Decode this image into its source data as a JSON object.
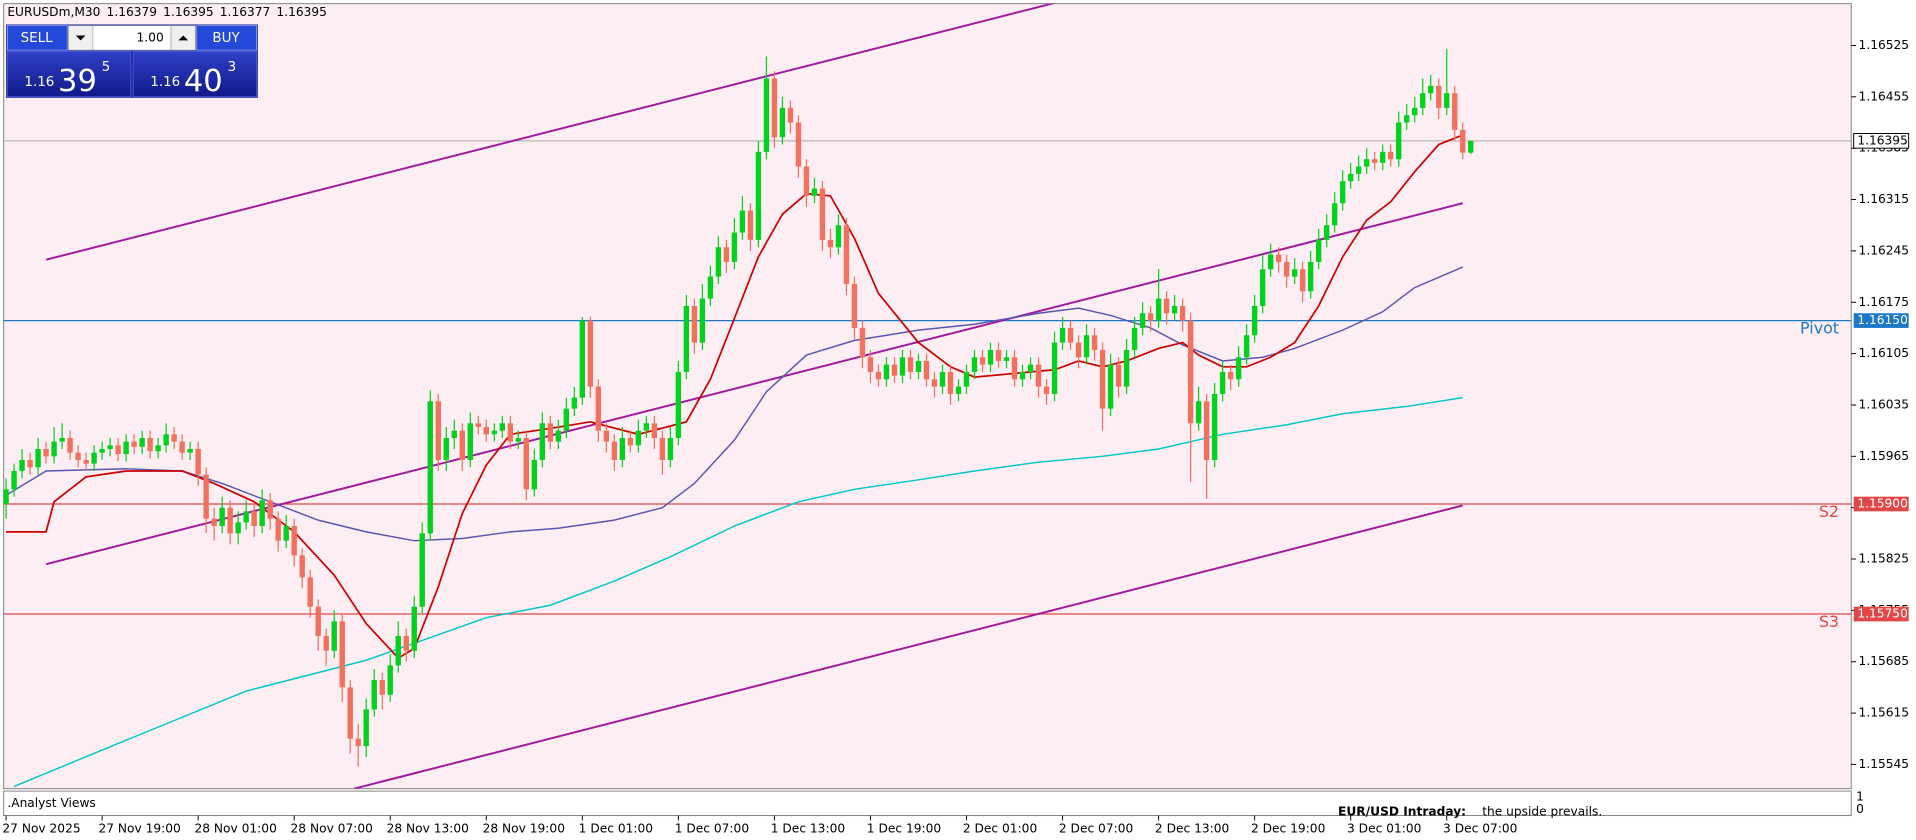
{
  "chart_data": {
    "type": "candlestick",
    "symbol": "EURUSDm,M30",
    "header_ohlc": [
      1.16379,
      1.16395,
      1.16377,
      1.16395
    ],
    "up_color": "#00d21e",
    "down_color": "#f2715e",
    "ylim": [
      1.15512,
      1.16582
    ],
    "yticks": [
      1.16525,
      1.16455,
      1.16385,
      1.16315,
      1.16245,
      1.16175,
      1.16105,
      1.16035,
      1.15965,
      1.15895,
      1.15825,
      1.15755,
      1.15685,
      1.15615,
      1.15545
    ],
    "xlim": [
      -0.3,
      230.54
    ],
    "xticks": [
      {
        "value": 0,
        "label": "27 Nov 2025"
      },
      {
        "value": 12,
        "label": "27 Nov 19:00"
      },
      {
        "value": 24,
        "label": "28 Nov 01:00"
      },
      {
        "value": 36,
        "label": "28 Nov 07:00"
      },
      {
        "value": 48,
        "label": "28 Nov 13:00"
      },
      {
        "value": 60,
        "label": "28 Nov 19:00"
      },
      {
        "value": 72,
        "label": "1 Dec 01:00"
      },
      {
        "value": 84,
        "label": "1 Dec 07:00"
      },
      {
        "value": 96,
        "label": "1 Dec 13:00"
      },
      {
        "value": 108,
        "label": "1 Dec 19:00"
      },
      {
        "value": 120,
        "label": "2 Dec 01:00"
      },
      {
        "value": 132,
        "label": "2 Dec 07:00"
      },
      {
        "value": 144,
        "label": "2 Dec 13:00"
      },
      {
        "value": 156,
        "label": "2 Dec 19:00"
      },
      {
        "value": 168,
        "label": "3 Dec 01:00"
      },
      {
        "value": 180,
        "label": "3 Dec 07:00"
      }
    ],
    "open": [
      1.159,
      1.1592,
      1.15945,
      1.1596,
      1.1595,
      1.15975,
      1.15965,
      1.15985,
      1.1599,
      1.1597,
      1.1596,
      1.15955,
      1.1597,
      1.15975,
      1.1598,
      1.15968,
      1.15985,
      1.15978,
      1.1599,
      1.15972,
      1.1598,
      1.15995,
      1.15985,
      1.1597,
      1.15975,
      1.1594,
      1.1588,
      1.1587,
      1.15895,
      1.1586,
      1.15875,
      1.1589,
      1.1587,
      1.15905,
      1.1588,
      1.1585,
      1.1587,
      1.1583,
      1.158,
      1.1576,
      1.1572,
      1.157,
      1.1574,
      1.1565,
      1.1558,
      1.1557,
      1.1562,
      1.1566,
      1.1564,
      1.1568,
      1.1572,
      1.157,
      1.1576,
      1.1586,
      1.1604,
      1.1596,
      1.1599,
      1.16,
      1.1596,
      1.1601,
      1.16005,
      1.15995,
      1.16,
      1.1601,
      1.15985,
      1.1599,
      1.1592,
      1.1596,
      1.1601,
      1.15985,
      1.16,
      1.1603,
      1.16045,
      1.1615,
      1.1606,
      1.16,
      1.15985,
      1.1596,
      1.1599,
      1.1598,
      1.16,
      1.1601,
      1.1599,
      1.1596,
      1.1599,
      1.1608,
      1.1617,
      1.1612,
      1.1618,
      1.1621,
      1.1625,
      1.1623,
      1.1627,
      1.163,
      1.1626,
      1.1638,
      1.1648,
      1.164,
      1.1644,
      1.1642,
      1.1636,
      1.1632,
      1.1633,
      1.1626,
      1.1625,
      1.1628,
      1.162,
      1.1614,
      1.161,
      1.1608,
      1.1607,
      1.1609,
      1.16075,
      1.161,
      1.1608,
      1.16095,
      1.1607,
      1.1606,
      1.1608,
      1.1605,
      1.1606,
      1.1608,
      1.161,
      1.1609,
      1.1611,
      1.16095,
      1.161,
      1.1607,
      1.1608,
      1.1609,
      1.1606,
      1.1605,
      1.1612,
      1.1614,
      1.1612,
      1.161,
      1.1613,
      1.1611,
      1.1603,
      1.1609,
      1.1606,
      1.1611,
      1.1614,
      1.1616,
      1.1615,
      1.1618,
      1.1616,
      1.1617,
      1.1615,
      1.1601,
      1.1604,
      1.1596,
      1.1605,
      1.1608,
      1.1607,
      1.161,
      1.1613,
      1.1617,
      1.1622,
      1.1624,
      1.1623,
      1.1621,
      1.1622,
      1.1619,
      1.1623,
      1.1626,
      1.1628,
      1.1631,
      1.1634,
      1.1635,
      1.1636,
      1.1637,
      1.16365,
      1.1638,
      1.1637,
      1.1642,
      1.1643,
      1.1644,
      1.1646,
      1.1647,
      1.1644,
      1.1646,
      1.1641,
      1.16379
    ],
    "high": [
      1.15935,
      1.15955,
      1.15975,
      1.1597,
      1.1599,
      1.15985,
      1.16005,
      1.1601,
      1.16,
      1.1598,
      1.1597,
      1.1598,
      1.15985,
      1.1599,
      1.1599,
      1.15995,
      1.15995,
      1.16,
      1.16,
      1.1599,
      1.1601,
      1.16005,
      1.15995,
      1.15985,
      1.15985,
      1.1595,
      1.15895,
      1.1591,
      1.15905,
      1.1589,
      1.15905,
      1.159,
      1.1592,
      1.15915,
      1.1589,
      1.15885,
      1.1588,
      1.1584,
      1.1581,
      1.1577,
      1.1573,
      1.15755,
      1.1575,
      1.1566,
      1.156,
      1.15635,
      1.15675,
      1.1567,
      1.15695,
      1.1574,
      1.1573,
      1.15775,
      1.15875,
      1.16055,
      1.1605,
      1.16005,
      1.16015,
      1.1601,
      1.16025,
      1.1602,
      1.16015,
      1.1601,
      1.1602,
      1.1602,
      1.16,
      1.16,
      1.15975,
      1.16025,
      1.1602,
      1.16015,
      1.16045,
      1.1606,
      1.16155,
      1.16155,
      1.1607,
      1.1601,
      1.15995,
      1.16005,
      1.16,
      1.16015,
      1.1602,
      1.1602,
      1.16,
      1.16005,
      1.16095,
      1.16185,
      1.1618,
      1.162,
      1.16225,
      1.16265,
      1.1626,
      1.1629,
      1.1632,
      1.1631,
      1.16395,
      1.1651,
      1.1649,
      1.16455,
      1.1645,
      1.1643,
      1.1637,
      1.16345,
      1.1634,
      1.16275,
      1.16295,
      1.1629,
      1.1621,
      1.1615,
      1.1611,
      1.1609,
      1.161,
      1.161,
      1.1611,
      1.1611,
      1.16105,
      1.16105,
      1.1608,
      1.1609,
      1.1609,
      1.1607,
      1.1609,
      1.1611,
      1.1611,
      1.1612,
      1.1612,
      1.1611,
      1.1611,
      1.1609,
      1.161,
      1.161,
      1.1607,
      1.16135,
      1.16155,
      1.1615,
      1.1613,
      1.16145,
      1.1614,
      1.1612,
      1.16105,
      1.161,
      1.16125,
      1.16155,
      1.16175,
      1.1617,
      1.1622,
      1.1619,
      1.16185,
      1.1618,
      1.1616,
      1.1606,
      1.1605,
      1.16065,
      1.16095,
      1.1609,
      1.16115,
      1.16145,
      1.16185,
      1.1624,
      1.16255,
      1.1625,
      1.1624,
      1.16235,
      1.1623,
      1.16245,
      1.16275,
      1.16295,
      1.16325,
      1.16355,
      1.16365,
      1.16375,
      1.16385,
      1.1638,
      1.1639,
      1.1639,
      1.16435,
      1.16445,
      1.16455,
      1.1648,
      1.16485,
      1.1648,
      1.1652,
      1.1647,
      1.1642,
      1.16395
    ],
    "low": [
      1.1588,
      1.1591,
      1.15935,
      1.1594,
      1.1594,
      1.15955,
      1.15955,
      1.15975,
      1.1596,
      1.1595,
      1.15945,
      1.15945,
      1.1596,
      1.15965,
      1.15958,
      1.15958,
      1.15968,
      1.15968,
      1.15962,
      1.15962,
      1.1597,
      1.15975,
      1.1596,
      1.1596,
      1.15925,
      1.1586,
      1.1585,
      1.1586,
      1.15845,
      1.15845,
      1.15865,
      1.15855,
      1.1586,
      1.15865,
      1.15835,
      1.1584,
      1.15815,
      1.15785,
      1.15745,
      1.157,
      1.1568,
      1.1569,
      1.1563,
      1.1556,
      1.15542,
      1.15555,
      1.1561,
      1.1562,
      1.1563,
      1.1567,
      1.15685,
      1.1569,
      1.1575,
      1.1585,
      1.15945,
      1.15945,
      1.15975,
      1.15945,
      1.1595,
      1.15995,
      1.15985,
      1.15985,
      1.1599,
      1.15975,
      1.15975,
      1.15905,
      1.1591,
      1.1595,
      1.15975,
      1.15975,
      1.1599,
      1.1602,
      1.16035,
      1.16045,
      1.15985,
      1.1597,
      1.15945,
      1.1595,
      1.1597,
      1.1597,
      1.1599,
      1.15975,
      1.1594,
      1.1595,
      1.1598,
      1.1607,
      1.16105,
      1.1611,
      1.1617,
      1.162,
      1.16215,
      1.1622,
      1.1626,
      1.16245,
      1.1625,
      1.1637,
      1.16385,
      1.1639,
      1.16405,
      1.16345,
      1.16305,
      1.1631,
      1.16245,
      1.16235,
      1.1624,
      1.16185,
      1.16125,
      1.16085,
      1.16065,
      1.1606,
      1.1606,
      1.16065,
      1.16065,
      1.1607,
      1.1607,
      1.1606,
      1.16045,
      1.1605,
      1.16035,
      1.1604,
      1.1605,
      1.1607,
      1.1608,
      1.1608,
      1.16085,
      1.16085,
      1.1606,
      1.1606,
      1.1607,
      1.16045,
      1.16035,
      1.1604,
      1.1611,
      1.1611,
      1.16085,
      1.1609,
      1.16095,
      1.16,
      1.1602,
      1.16045,
      1.1605,
      1.161,
      1.1613,
      1.16135,
      1.1614,
      1.16145,
      1.1615,
      1.16135,
      1.1593,
      1.16,
      1.15907,
      1.1595,
      1.1604,
      1.16055,
      1.1606,
      1.1609,
      1.1612,
      1.1616,
      1.1621,
      1.16215,
      1.16195,
      1.162,
      1.16175,
      1.1618,
      1.1622,
      1.1625,
      1.1627,
      1.163,
      1.1633,
      1.1634,
      1.1635,
      1.16355,
      1.16355,
      1.1636,
      1.1636,
      1.1641,
      1.1642,
      1.1643,
      1.1645,
      1.16425,
      1.1643,
      1.16395,
      1.1637,
      1.16377
    ],
    "close": [
      1.1592,
      1.15945,
      1.1596,
      1.1595,
      1.15975,
      1.15965,
      1.15985,
      1.1599,
      1.1597,
      1.1596,
      1.15955,
      1.1597,
      1.15975,
      1.1598,
      1.15968,
      1.15985,
      1.15978,
      1.1599,
      1.15972,
      1.1598,
      1.15995,
      1.15985,
      1.1597,
      1.15975,
      1.1594,
      1.1588,
      1.1587,
      1.15895,
      1.1586,
      1.15875,
      1.1589,
      1.1587,
      1.15905,
      1.1588,
      1.1585,
      1.1587,
      1.1583,
      1.158,
      1.1576,
      1.1572,
      1.157,
      1.1574,
      1.1565,
      1.1558,
      1.1557,
      1.1562,
      1.1566,
      1.1564,
      1.1568,
      1.1572,
      1.157,
      1.1576,
      1.1586,
      1.1604,
      1.1596,
      1.1599,
      1.16,
      1.1596,
      1.1601,
      1.16005,
      1.15995,
      1.16,
      1.1601,
      1.15985,
      1.1599,
      1.1592,
      1.1596,
      1.1601,
      1.15985,
      1.16,
      1.1603,
      1.16045,
      1.1615,
      1.1606,
      1.16,
      1.15985,
      1.1596,
      1.1599,
      1.1598,
      1.16,
      1.1601,
      1.1599,
      1.1596,
      1.1599,
      1.1608,
      1.1617,
      1.1612,
      1.1618,
      1.1621,
      1.1625,
      1.1623,
      1.1627,
      1.163,
      1.1626,
      1.1638,
      1.1648,
      1.164,
      1.1644,
      1.1642,
      1.1636,
      1.1632,
      1.1633,
      1.1626,
      1.1625,
      1.1628,
      1.162,
      1.1614,
      1.161,
      1.1608,
      1.1607,
      1.1609,
      1.16075,
      1.161,
      1.1608,
      1.16095,
      1.1607,
      1.1606,
      1.1608,
      1.1605,
      1.1606,
      1.1608,
      1.161,
      1.1609,
      1.1611,
      1.16095,
      1.161,
      1.1607,
      1.1608,
      1.1609,
      1.1606,
      1.1605,
      1.1612,
      1.1614,
      1.1612,
      1.161,
      1.1613,
      1.1611,
      1.1603,
      1.1609,
      1.1606,
      1.1611,
      1.1614,
      1.1616,
      1.1615,
      1.1618,
      1.1616,
      1.1617,
      1.1615,
      1.1601,
      1.1604,
      1.1596,
      1.1605,
      1.1608,
      1.1607,
      1.161,
      1.1613,
      1.1617,
      1.1622,
      1.1624,
      1.1623,
      1.1621,
      1.1622,
      1.1619,
      1.1623,
      1.1626,
      1.1628,
      1.1631,
      1.1634,
      1.1635,
      1.1636,
      1.1637,
      1.16365,
      1.1638,
      1.1637,
      1.1642,
      1.1643,
      1.1644,
      1.1646,
      1.1647,
      1.1644,
      1.1646,
      1.1641,
      1.16379,
      1.16395
    ],
    "moving_averages": [
      {
        "color": "#00c8c8",
        "width": 1.2,
        "x": [
          1,
          15,
          30,
          45,
          60,
          68,
          76,
          83,
          91,
          99,
          106,
          114,
          121,
          129,
          137,
          144,
          152,
          160,
          167,
          175,
          182
        ],
        "values": [
          1.15515,
          1.15578,
          1.15645,
          1.15687,
          1.15745,
          1.15762,
          1.15795,
          1.15828,
          1.1587,
          1.15903,
          1.1592,
          1.15933,
          1.15945,
          1.15957,
          1.15965,
          1.15975,
          1.15995,
          1.16008,
          1.16023,
          1.16033,
          1.16045
        ]
      },
      {
        "color": "#5a55b0",
        "width": 1.2,
        "x": [
          0,
          5,
          15,
          22,
          27,
          33,
          39,
          45,
          51,
          57,
          63,
          69,
          76,
          82,
          86,
          91,
          95,
          100,
          106,
          114,
          121,
          129,
          134,
          138,
          143,
          147,
          152,
          157,
          161,
          167,
          172,
          176,
          182
        ],
        "values": [
          1.15912,
          1.15945,
          1.15948,
          1.15945,
          1.15928,
          1.15903,
          1.15878,
          1.15862,
          1.1585,
          1.15853,
          1.15862,
          1.15867,
          1.15878,
          1.15895,
          1.15928,
          1.15987,
          1.16053,
          1.16103,
          1.16123,
          1.16137,
          1.16145,
          1.1616,
          1.16167,
          1.16157,
          1.1614,
          1.16117,
          1.16095,
          1.161,
          1.16112,
          1.16137,
          1.16162,
          1.16195,
          1.16223
        ]
      },
      {
        "color": "#cc0000",
        "width": 1.4,
        "x": [
          0,
          5,
          6,
          10,
          15,
          22,
          26,
          31,
          36,
          41,
          45,
          49,
          51,
          54,
          57,
          60,
          63,
          68,
          73,
          79,
          85,
          88,
          91,
          94,
          97,
          100,
          103,
          106,
          109,
          114,
          118,
          121,
          126,
          131,
          134,
          137,
          140,
          144,
          147,
          149,
          152,
          155,
          158,
          161,
          164,
          167,
          170,
          173,
          176,
          179,
          182
        ],
        "values": [
          1.15862,
          1.15862,
          1.15903,
          1.15937,
          1.15945,
          1.15945,
          1.15928,
          1.15903,
          1.15862,
          1.15803,
          1.15737,
          1.1569,
          1.15703,
          1.15787,
          1.15887,
          1.15953,
          1.15995,
          1.16003,
          1.16012,
          1.15995,
          1.16012,
          1.1607,
          1.16153,
          1.16237,
          1.16295,
          1.16323,
          1.1632,
          1.16262,
          1.16187,
          1.1612,
          1.16087,
          1.16073,
          1.16078,
          1.16083,
          1.16095,
          1.16087,
          1.16095,
          1.16112,
          1.1612,
          1.16103,
          1.16087,
          1.16087,
          1.161,
          1.1612,
          1.1617,
          1.16237,
          1.16287,
          1.16312,
          1.16353,
          1.1639,
          1.16403
        ]
      }
    ],
    "channel_color": "#a0189c",
    "channels": [
      {
        "x": [
          5,
          131
        ],
        "values": [
          1.16233,
          1.16583
        ]
      },
      {
        "x": [
          5,
          182
        ],
        "values": [
          1.15818,
          1.1631
        ]
      },
      {
        "x": [
          43.5,
          182
        ],
        "values": [
          1.15512,
          1.15898
        ]
      }
    ],
    "levels": [
      {
        "name": "Pivot",
        "value": 1.1615,
        "label": "1.16150",
        "color": "#1e78c8"
      },
      {
        "name": "S2",
        "value": 1.159,
        "label": "1.15900",
        "color": "#e04848"
      },
      {
        "name": "S3",
        "value": 1.1575,
        "label": "1.15750",
        "color": "#e04848"
      }
    ],
    "bid": 1.16395,
    "bid_color": "#a8a8a8"
  },
  "trade_panel": {
    "sell": "SELL",
    "lot": "1.00",
    "buy": "BUY",
    "sell_price": [
      "1.16",
      "39",
      "5"
    ],
    "buy_price": [
      "1.16",
      "40",
      "3"
    ]
  },
  "subwindow": {
    "title": ".Analyst Views",
    "news_title": "EUR/USD Intraday:",
    "news_text": "the upside prevails.",
    "yticks": [
      1,
      0
    ]
  }
}
